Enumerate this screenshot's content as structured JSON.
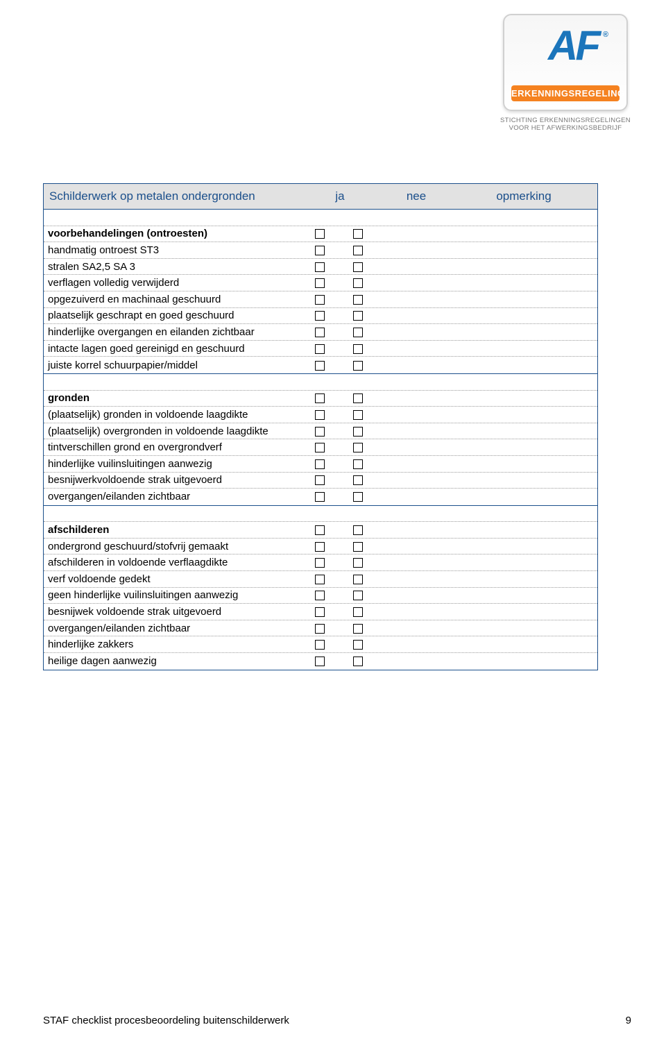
{
  "logo": {
    "letters": "AF",
    "reg": "®",
    "bar": "ERKENNINGSREGELING",
    "sub1": "STICHTING ERKENNINGSREGELINGEN",
    "sub2": "VOOR HET AFWERKINGSBEDRIJF"
  },
  "header": {
    "title": "Schilderwerk op metalen ondergronden",
    "ja": "ja",
    "nee": "nee",
    "opm": "opmerking"
  },
  "sections": [
    {
      "rows": [
        {
          "label": "voorbehandelingen (ontroesten)",
          "bold": true,
          "ja": true,
          "nee": true
        },
        {
          "label": "handmatig ontroest ST3",
          "bold": false,
          "ja": true,
          "nee": true
        },
        {
          "label": "stralen SA2,5 SA 3",
          "bold": false,
          "ja": true,
          "nee": true
        },
        {
          "label": "verflagen volledig verwijderd",
          "bold": false,
          "ja": true,
          "nee": true
        },
        {
          "label": "opgezuiverd en machinaal geschuurd",
          "bold": false,
          "ja": true,
          "nee": true
        },
        {
          "label": "plaatselijk geschrapt en goed geschuurd",
          "bold": false,
          "ja": true,
          "nee": true
        },
        {
          "label": "hinderlijke overgangen en eilanden zichtbaar",
          "bold": false,
          "ja": true,
          "nee": true
        },
        {
          "label": "intacte lagen goed gereinigd en geschuurd",
          "bold": false,
          "ja": true,
          "nee": true
        },
        {
          "label": "juiste korrel schuurpapier/middel",
          "bold": false,
          "ja": true,
          "nee": true
        }
      ]
    },
    {
      "rows": [
        {
          "label": "gronden",
          "bold": true,
          "ja": true,
          "nee": true
        },
        {
          "label": "(plaatselijk) gronden in voldoende laagdikte",
          "bold": false,
          "ja": true,
          "nee": true
        },
        {
          "label": "(plaatselijk) overgronden in voldoende laagdikte",
          "bold": false,
          "ja": true,
          "nee": true
        },
        {
          "label": "tintverschillen grond en overgrondverf",
          "bold": false,
          "ja": true,
          "nee": true
        },
        {
          "label": "hinderlijke vuilinsluitingen aanwezig",
          "bold": false,
          "ja": true,
          "nee": true
        },
        {
          "label": "besnijwerkvoldoende strak uitgevoerd",
          "bold": false,
          "ja": true,
          "nee": true
        },
        {
          "label": "overgangen/eilanden zichtbaar",
          "bold": false,
          "ja": true,
          "nee": true
        }
      ]
    },
    {
      "rows": [
        {
          "label": "afschilderen",
          "bold": true,
          "ja": true,
          "nee": true
        },
        {
          "label": "ondergrond geschuurd/stofvrij gemaakt",
          "bold": false,
          "ja": true,
          "nee": true
        },
        {
          "label": "afschilderen in voldoende verflaagdikte",
          "bold": false,
          "ja": true,
          "nee": true
        },
        {
          "label": "verf voldoende gedekt",
          "bold": false,
          "ja": true,
          "nee": true
        },
        {
          "label": "geen hinderlijke vuilinsluitingen aanwezig",
          "bold": false,
          "ja": true,
          "nee": true
        },
        {
          "label": "besnijwek voldoende strak uitgevoerd",
          "bold": false,
          "ja": true,
          "nee": true
        },
        {
          "label": "overgangen/eilanden zichtbaar",
          "bold": false,
          "ja": true,
          "nee": true
        },
        {
          "label": "hinderlijke zakkers",
          "bold": false,
          "ja": true,
          "nee": true
        },
        {
          "label": "heilige dagen aanwezig",
          "bold": false,
          "ja": true,
          "nee": true
        }
      ]
    }
  ],
  "footer": {
    "text": "STAF checklist procesbeoordeling buitenschilderwerk",
    "page": "9"
  }
}
